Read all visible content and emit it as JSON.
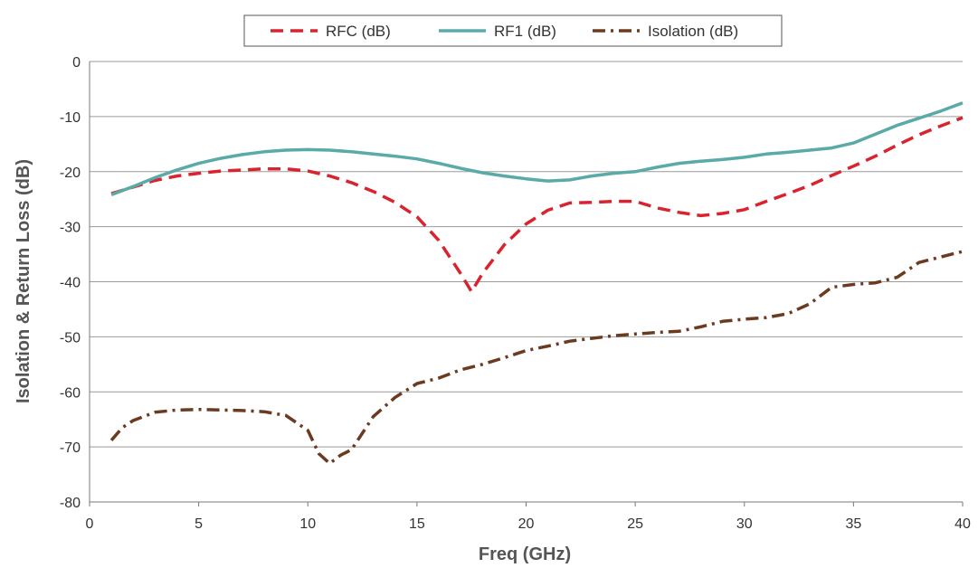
{
  "chart_data": {
    "type": "line",
    "title": "",
    "xlabel": "Freq (GHz)",
    "ylabel": "Isolation & Return Loss (dB)",
    "xlim": [
      0,
      40
    ],
    "ylim": [
      -80,
      0
    ],
    "xticks": [
      0,
      5,
      10,
      15,
      20,
      25,
      30,
      35,
      40
    ],
    "yticks": [
      0,
      -10,
      -20,
      -30,
      -40,
      -50,
      -60,
      -70,
      -80
    ],
    "grid": "horizontal",
    "legend_position": "top-center",
    "series": [
      {
        "name": "RFC (dB)",
        "color": "#d9232e",
        "style": "dashed",
        "x": [
          1,
          2,
          3,
          4,
          5,
          6,
          7,
          8,
          9,
          10,
          11,
          12,
          13,
          14,
          15,
          16,
          17,
          17.5,
          18,
          19,
          20,
          21,
          22,
          23,
          24,
          25,
          26,
          27,
          28,
          29,
          30,
          31,
          32,
          33,
          34,
          35,
          36,
          37,
          38,
          39,
          40
        ],
        "values": [
          -24,
          -22.8,
          -21.6,
          -20.8,
          -20.3,
          -19.9,
          -19.7,
          -19.5,
          -19.5,
          -19.9,
          -20.8,
          -22,
          -23.6,
          -25.6,
          -28.2,
          -32.5,
          -38.5,
          -41.8,
          -38.5,
          -33.3,
          -29.5,
          -27,
          -25.7,
          -25.6,
          -25.4,
          -25.4,
          -26.6,
          -27.4,
          -28,
          -27.6,
          -26.9,
          -25.4,
          -24,
          -22.5,
          -20.7,
          -19,
          -17.2,
          -15.2,
          -13.3,
          -11.7,
          -10.2
        ]
      },
      {
        "name": "RF1 (dB)",
        "color": "#5aaaa8",
        "style": "solid",
        "x": [
          1,
          2,
          3,
          4,
          5,
          6,
          7,
          8,
          9,
          10,
          11,
          12,
          13,
          14,
          15,
          16,
          17,
          18,
          19,
          20,
          21,
          22,
          23,
          24,
          25,
          26,
          27,
          28,
          29,
          30,
          31,
          32,
          33,
          34,
          35,
          36,
          37,
          38,
          39,
          40
        ],
        "values": [
          -24.2,
          -22.7,
          -21.1,
          -19.7,
          -18.5,
          -17.6,
          -16.9,
          -16.4,
          -16.1,
          -16,
          -16.1,
          -16.4,
          -16.8,
          -17.2,
          -17.7,
          -18.5,
          -19.4,
          -20.2,
          -20.8,
          -21.3,
          -21.7,
          -21.5,
          -20.8,
          -20.3,
          -20,
          -19.2,
          -18.5,
          -18.1,
          -17.8,
          -17.4,
          -16.8,
          -16.5,
          -16.1,
          -15.7,
          -14.8,
          -13.2,
          -11.6,
          -10.3,
          -9,
          -7.5
        ]
      },
      {
        "name": "Isolation (dB)",
        "color": "#6b3a1f",
        "style": "dash-dot",
        "x": [
          1,
          1.5,
          2,
          3,
          4,
          5,
          6,
          7,
          8,
          9,
          10,
          10.5,
          11,
          11.5,
          12,
          13,
          14,
          15,
          16,
          17,
          18,
          19,
          20,
          21,
          22,
          23,
          24,
          25,
          26,
          27,
          28,
          29,
          30,
          31,
          32,
          33,
          34,
          35,
          36,
          37,
          38,
          39,
          40
        ],
        "values": [
          -68.8,
          -66.5,
          -65.2,
          -63.7,
          -63.3,
          -63.2,
          -63.3,
          -63.4,
          -63.6,
          -64.3,
          -67,
          -71.2,
          -73,
          -71.5,
          -70.5,
          -64.5,
          -61,
          -58.5,
          -57.5,
          -56,
          -55,
          -53.8,
          -52.5,
          -51.7,
          -50.8,
          -50.3,
          -49.8,
          -49.5,
          -49.2,
          -49,
          -48.2,
          -47.2,
          -46.8,
          -46.5,
          -45.8,
          -44,
          -41,
          -40.5,
          -40.2,
          -39.2,
          -36.5,
          -35.5,
          -34.5
        ]
      }
    ]
  }
}
